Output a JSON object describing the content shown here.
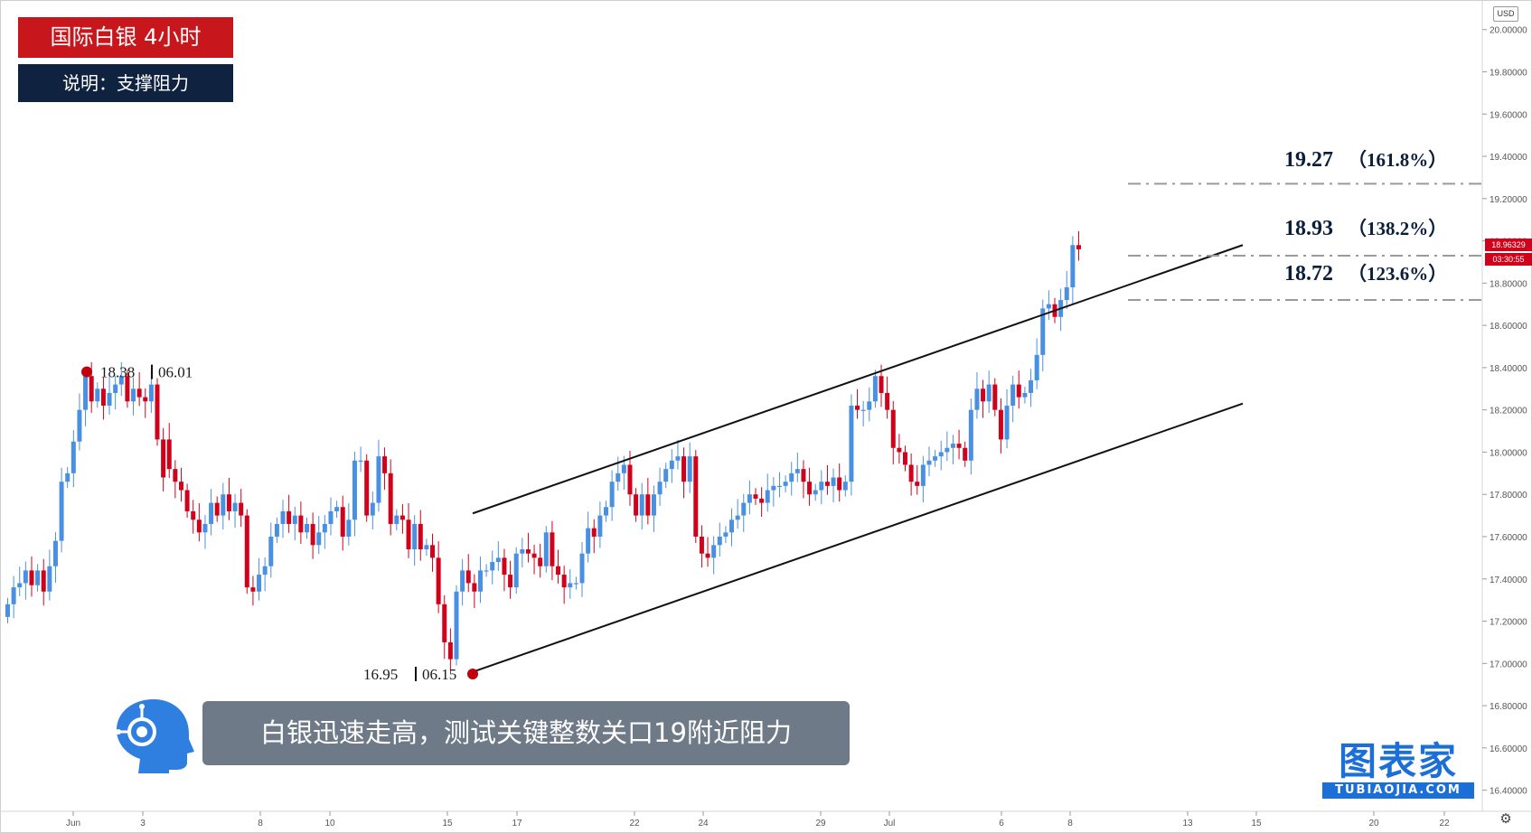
{
  "title": "国际白银  4小时",
  "subtitle": "说明：支撑阻力",
  "caption": "白银迅速走高，测试关键整数关口19附近阻力",
  "brand": {
    "name": "图表家",
    "url": "TUBIAOJIA.COM"
  },
  "currency": "USD",
  "current_price_label": "18.96329",
  "countdown_label": "03:30:55",
  "colors": {
    "up": "#4a90e2",
    "down": "#d0021b",
    "title_bg": "#c8161d",
    "subtitle_bg": "#0f2340",
    "caption_bg": "#6f7a88",
    "brand": "#1b6fd6"
  },
  "icons": {
    "settings": "gear-icon",
    "logo": "robot-head-icon"
  },
  "chart_data": {
    "type": "candlestick",
    "ylim": [
      16.3,
      20.08
    ],
    "y_ticks": [
      16.4,
      16.6,
      16.8,
      17.0,
      17.2,
      17.4,
      17.6,
      17.8,
      18.0,
      18.2,
      18.4,
      18.6,
      18.8,
      19.0,
      19.2,
      19.4,
      19.6,
      19.8,
      20.0
    ],
    "y_tick_labels": [
      "16.40000",
      "16.60000",
      "16.80000",
      "17.00000",
      "17.20000",
      "17.40000",
      "17.60000",
      "17.80000",
      "18.00000",
      "18.20000",
      "18.40000",
      "18.60000",
      "18.80000",
      "19.00000",
      "19.20000",
      "19.40000",
      "19.60000",
      "19.80000",
      "20.00000"
    ],
    "x_labels": [
      "Jun",
      "3",
      "8",
      "10",
      "15",
      "17",
      "22",
      "24",
      "29",
      "Jul",
      "6",
      "8",
      "13",
      "15",
      "20",
      "22"
    ],
    "candles": [
      [
        17.22,
        17.28
      ],
      [
        17.28,
        17.36
      ],
      [
        17.36,
        17.38
      ],
      [
        17.38,
        17.44
      ],
      [
        17.44,
        17.37
      ],
      [
        17.37,
        17.44
      ],
      [
        17.44,
        17.34
      ],
      [
        17.34,
        17.46
      ],
      [
        17.46,
        17.58
      ],
      [
        17.58,
        17.86
      ],
      [
        17.86,
        17.9
      ],
      [
        17.9,
        18.05
      ],
      [
        18.05,
        18.2
      ],
      [
        18.2,
        18.36
      ],
      [
        18.36,
        18.24
      ],
      [
        18.24,
        18.3
      ],
      [
        18.3,
        18.22
      ],
      [
        18.22,
        18.28
      ],
      [
        18.28,
        18.32
      ],
      [
        18.32,
        18.36
      ],
      [
        18.36,
        18.24
      ],
      [
        18.24,
        18.3
      ],
      [
        18.3,
        18.26
      ],
      [
        18.26,
        18.24
      ],
      [
        18.24,
        18.32
      ],
      [
        18.32,
        18.06
      ],
      [
        18.06,
        17.88
      ],
      [
        18.06,
        17.92
      ],
      [
        17.92,
        17.86
      ],
      [
        17.86,
        17.82
      ],
      [
        17.82,
        17.72
      ],
      [
        17.72,
        17.68
      ],
      [
        17.68,
        17.62
      ],
      [
        17.62,
        17.66
      ],
      [
        17.66,
        17.76
      ],
      [
        17.76,
        17.7
      ],
      [
        17.7,
        17.8
      ],
      [
        17.8,
        17.72
      ],
      [
        17.72,
        17.76
      ],
      [
        17.76,
        17.7
      ],
      [
        17.7,
        17.36
      ],
      [
        17.36,
        17.34
      ],
      [
        17.34,
        17.42
      ],
      [
        17.42,
        17.46
      ],
      [
        17.46,
        17.6
      ],
      [
        17.6,
        17.66
      ],
      [
        17.66,
        17.72
      ],
      [
        17.72,
        17.66
      ],
      [
        17.66,
        17.7
      ],
      [
        17.7,
        17.62
      ],
      [
        17.62,
        17.66
      ],
      [
        17.66,
        17.56
      ],
      [
        17.56,
        17.62
      ],
      [
        17.62,
        17.66
      ],
      [
        17.66,
        17.72
      ],
      [
        17.72,
        17.74
      ],
      [
        17.74,
        17.6
      ],
      [
        17.6,
        17.68
      ],
      [
        17.68,
        17.96
      ],
      [
        17.96,
        17.96
      ],
      [
        17.96,
        17.7
      ],
      [
        17.7,
        17.76
      ],
      [
        17.76,
        17.98
      ],
      [
        17.98,
        17.9
      ],
      [
        17.9,
        17.66
      ],
      [
        17.66,
        17.7
      ],
      [
        17.7,
        17.68
      ],
      [
        17.68,
        17.54
      ],
      [
        17.54,
        17.66
      ],
      [
        17.66,
        17.54
      ],
      [
        17.54,
        17.56
      ],
      [
        17.56,
        17.5
      ],
      [
        17.5,
        17.28
      ],
      [
        17.28,
        17.1
      ],
      [
        17.1,
        17.02
      ],
      [
        17.02,
        17.34
      ],
      [
        17.34,
        17.44
      ],
      [
        17.44,
        17.38
      ],
      [
        17.38,
        17.34
      ],
      [
        17.34,
        17.44
      ],
      [
        17.44,
        17.44
      ],
      [
        17.44,
        17.48
      ],
      [
        17.48,
        17.5
      ],
      [
        17.5,
        17.42
      ],
      [
        17.42,
        17.36
      ],
      [
        17.36,
        17.52
      ],
      [
        17.52,
        17.54
      ],
      [
        17.54,
        17.52
      ],
      [
        17.52,
        17.5
      ],
      [
        17.5,
        17.46
      ],
      [
        17.46,
        17.62
      ],
      [
        17.62,
        17.46
      ],
      [
        17.46,
        17.42
      ],
      [
        17.42,
        17.36
      ],
      [
        17.36,
        17.38
      ],
      [
        17.38,
        17.38
      ],
      [
        17.38,
        17.52
      ],
      [
        17.52,
        17.64
      ],
      [
        17.64,
        17.6
      ],
      [
        17.6,
        17.7
      ],
      [
        17.7,
        17.74
      ],
      [
        17.74,
        17.86
      ],
      [
        17.86,
        17.9
      ],
      [
        17.9,
        17.94
      ],
      [
        17.94,
        17.8
      ],
      [
        17.8,
        17.7
      ],
      [
        17.7,
        17.8
      ],
      [
        17.8,
        17.7
      ],
      [
        17.7,
        17.8
      ],
      [
        17.8,
        17.86
      ],
      [
        17.86,
        17.92
      ],
      [
        17.92,
        17.96
      ],
      [
        17.96,
        17.98
      ],
      [
        17.98,
        17.86
      ],
      [
        17.86,
        17.98
      ],
      [
        17.98,
        17.6
      ],
      [
        17.6,
        17.52
      ],
      [
        17.52,
        17.5
      ],
      [
        17.5,
        17.56
      ],
      [
        17.56,
        17.6
      ],
      [
        17.6,
        17.62
      ],
      [
        17.62,
        17.68
      ],
      [
        17.68,
        17.7
      ],
      [
        17.7,
        17.76
      ],
      [
        17.76,
        17.8
      ],
      [
        17.8,
        17.78
      ],
      [
        17.78,
        17.76
      ],
      [
        17.76,
        17.82
      ],
      [
        17.82,
        17.84
      ],
      [
        17.84,
        17.84
      ],
      [
        17.84,
        17.86
      ],
      [
        17.86,
        17.9
      ],
      [
        17.9,
        17.92
      ],
      [
        17.92,
        17.86
      ],
      [
        17.86,
        17.8
      ],
      [
        17.8,
        17.82
      ],
      [
        17.82,
        17.86
      ],
      [
        17.86,
        17.84
      ],
      [
        17.84,
        17.88
      ],
      [
        17.88,
        17.82
      ],
      [
        17.82,
        17.86
      ],
      [
        17.86,
        18.22
      ],
      [
        18.22,
        18.2
      ],
      [
        18.2,
        18.2
      ],
      [
        18.2,
        18.24
      ],
      [
        18.24,
        18.36
      ],
      [
        18.36,
        18.28
      ],
      [
        18.28,
        18.2
      ],
      [
        18.2,
        18.02
      ],
      [
        18.02,
        18.0
      ],
      [
        18.0,
        17.94
      ],
      [
        17.94,
        17.86
      ],
      [
        17.86,
        17.84
      ],
      [
        17.84,
        17.94
      ],
      [
        17.94,
        17.96
      ],
      [
        17.96,
        17.98
      ],
      [
        17.98,
        18.0
      ],
      [
        18.0,
        18.02
      ],
      [
        18.02,
        18.04
      ],
      [
        18.04,
        18.02
      ],
      [
        18.02,
        17.96
      ],
      [
        17.96,
        18.2
      ],
      [
        18.2,
        18.3
      ],
      [
        18.3,
        18.24
      ],
      [
        18.24,
        18.32
      ],
      [
        18.32,
        18.2
      ],
      [
        18.2,
        18.06
      ],
      [
        18.06,
        18.22
      ],
      [
        18.22,
        18.32
      ],
      [
        18.32,
        18.26
      ],
      [
        18.26,
        18.28
      ],
      [
        18.28,
        18.34
      ],
      [
        18.34,
        18.46
      ],
      [
        18.46,
        18.68
      ],
      [
        18.68,
        18.7
      ],
      [
        18.7,
        18.64
      ],
      [
        18.64,
        18.72
      ],
      [
        18.72,
        18.78
      ],
      [
        18.78,
        18.98
      ],
      [
        18.98,
        18.96
      ]
    ],
    "channel": {
      "upper": [
        [
          17.71,
          18.98
        ]
      ],
      "lower": [
        [
          16.96,
          18.23
        ]
      ]
    },
    "levels": [
      {
        "value": 19.27,
        "label": "19.27",
        "pct": "（161.8%）"
      },
      {
        "value": 18.93,
        "label": "18.93",
        "pct": "（138.2%）"
      },
      {
        "value": 18.72,
        "label": "18.72",
        "pct": "（123.6%）"
      }
    ],
    "pivots": [
      {
        "value": 18.38,
        "price_label": "18.38",
        "date_label": "06.01",
        "position": "high"
      },
      {
        "value": 16.95,
        "price_label": "16.95",
        "date_label": "06.15",
        "position": "low"
      }
    ]
  }
}
